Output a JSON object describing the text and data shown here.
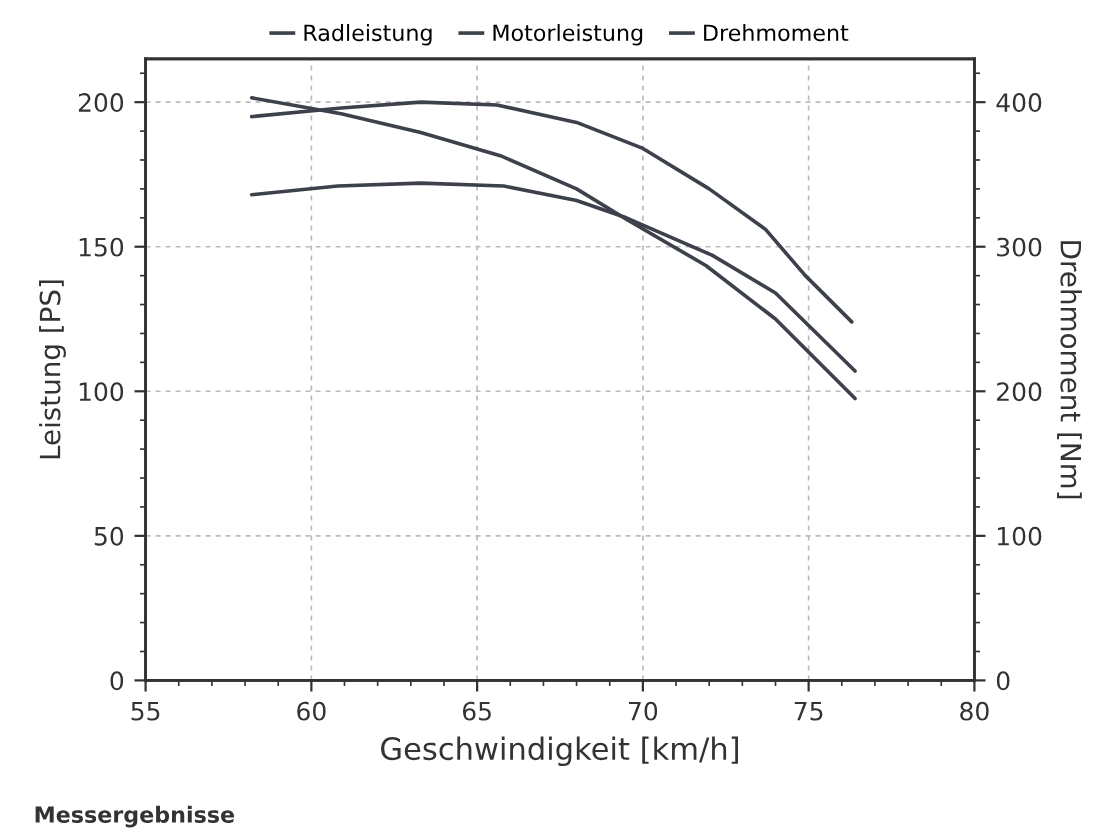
{
  "chart_data": {
    "type": "line",
    "xlabel": "Geschwindigkeit [km/h]",
    "ylabel": "Leistung [PS]",
    "y2label": "Drehmoment [Nm]",
    "annotations": [
      "Messergebnisse"
    ],
    "xlim": [
      55,
      80
    ],
    "ylim": [
      0,
      215
    ],
    "y2lim": [
      0,
      430
    ],
    "xticks": [
      55,
      {
        "value": 56,
        "label": null
      },
      {
        "value": 57,
        "label": null
      },
      {
        "value": 58,
        "label": null
      },
      {
        "value": 59,
        "label": null
      },
      60,
      {
        "value": 61,
        "label": null
      },
      {
        "value": 62,
        "label": null
      },
      {
        "value": 63,
        "label": null
      },
      {
        "value": 64,
        "label": null
      },
      65,
      {
        "value": 66,
        "label": null
      },
      {
        "value": 67,
        "label": null
      },
      {
        "value": 68,
        "label": null
      },
      {
        "value": 69,
        "label": null
      },
      70,
      {
        "value": 71,
        "label": null
      },
      {
        "value": 72,
        "label": null
      },
      {
        "value": 73,
        "label": null
      },
      {
        "value": 74,
        "label": null
      },
      75,
      {
        "value": 76,
        "label": null
      },
      {
        "value": 77,
        "label": null
      },
      {
        "value": 78,
        "label": null
      },
      {
        "value": 79,
        "label": null
      },
      80
    ],
    "yticks": [
      0,
      {
        "value": 10,
        "label": null
      },
      {
        "value": 20,
        "label": null
      },
      {
        "value": 30,
        "label": null
      },
      {
        "value": 40,
        "label": null
      },
      50,
      {
        "value": 60,
        "label": null
      },
      {
        "value": 70,
        "label": null
      },
      {
        "value": 80,
        "label": null
      },
      {
        "value": 90,
        "label": null
      },
      100,
      {
        "value": 110,
        "label": null
      },
      {
        "value": 120,
        "label": null
      },
      {
        "value": 130,
        "label": null
      },
      {
        "value": 140,
        "label": null
      },
      150,
      {
        "value": 160,
        "label": null
      },
      {
        "value": 170,
        "label": null
      },
      {
        "value": 180,
        "label": null
      },
      {
        "value": 190,
        "label": null
      },
      200,
      {
        "value": 210,
        "label": null
      }
    ],
    "y2ticks": [
      0,
      {
        "value": 20,
        "label": null
      },
      {
        "value": 40,
        "label": null
      },
      {
        "value": 60,
        "label": null
      },
      {
        "value": 80,
        "label": null
      },
      100,
      {
        "value": 120,
        "label": null
      },
      {
        "value": 140,
        "label": null
      },
      {
        "value": 160,
        "label": null
      },
      {
        "value": 180,
        "label": null
      },
      200,
      {
        "value": 220,
        "label": null
      },
      {
        "value": 240,
        "label": null
      },
      {
        "value": 260,
        "label": null
      },
      {
        "value": 280,
        "label": null
      },
      300,
      {
        "value": 320,
        "label": null
      },
      {
        "value": 340,
        "label": null
      },
      {
        "value": 360,
        "label": null
      },
      {
        "value": 380,
        "label": null
      },
      400,
      {
        "value": 420,
        "label": null
      }
    ],
    "grid": true,
    "legend": "top",
    "marker": "none",
    "line_style": "solid",
    "series": [
      {
        "name": "Radleistung",
        "color": "#3c414b",
        "x": [
          58.2,
          60.8,
          63.3,
          65.8,
          68.0,
          69.5,
          72.1,
          74.0,
          76.4
        ],
        "values": [
          168,
          171,
          172,
          171,
          166,
          160,
          147,
          134,
          107
        ]
      },
      {
        "name": "Motorleistung",
        "color": "#3c414b",
        "x": [
          58.2,
          60.9,
          63.3,
          65.6,
          68.0,
          70.0,
          72.0,
          73.7,
          74.9,
          76.3
        ],
        "values": [
          195,
          198,
          200,
          199,
          193,
          184,
          170,
          156,
          140,
          124
        ]
      },
      {
        "name": "Drehmoment",
        "color": "#3c414b",
        "axis": "y2",
        "x": [
          58.2,
          60.9,
          63.3,
          65.7,
          68.0,
          69.5,
          71.9,
          74.0,
          76.4
        ],
        "values": [
          403,
          392,
          379,
          363,
          340,
          319,
          287,
          250,
          195
        ]
      }
    ]
  }
}
